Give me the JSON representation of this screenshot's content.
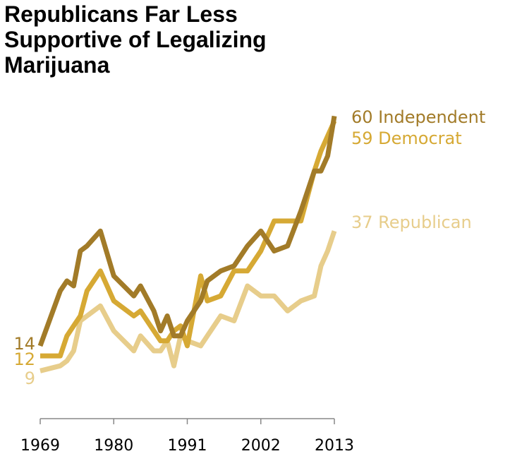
{
  "chart_data": {
    "type": "line",
    "title": "Republicans Far Less Supportive of Legalizing Marijuana",
    "x": [
      1969,
      1972,
      1973,
      1974,
      1975,
      1976,
      1978,
      1980,
      1983,
      1984,
      1986,
      1987,
      1988,
      1989,
      1990,
      1991,
      1993,
      1994,
      1996,
      1998,
      2000,
      2002,
      2004,
      2006,
      2008,
      2010,
      2011,
      2012,
      2013
    ],
    "series": [
      {
        "name": "Independent",
        "color": "#a27b28",
        "values": [
          14,
          25,
          27,
          26,
          33,
          34,
          37,
          28,
          24,
          26,
          21,
          17,
          20,
          16,
          16,
          19,
          23,
          27,
          29,
          30,
          34,
          37,
          33,
          34,
          41,
          49,
          49,
          52,
          60
        ]
      },
      {
        "name": "Democrat",
        "color": "#d6a934",
        "values": [
          12,
          12,
          16,
          18,
          20,
          25,
          29,
          23,
          20,
          21,
          17,
          15,
          15,
          17,
          18,
          14,
          28,
          23,
          24,
          29,
          29,
          33,
          39,
          39,
          39,
          49,
          53,
          56,
          59
        ]
      },
      {
        "name": "Republican",
        "color": "#e7cd8b",
        "values": [
          9,
          10,
          11,
          13,
          19,
          20,
          22,
          17,
          13,
          16,
          13,
          13,
          15,
          10,
          16,
          15,
          14,
          16,
          20,
          19,
          26,
          24,
          24,
          21,
          23,
          24,
          30,
          33,
          37
        ]
      }
    ],
    "xlim": [
      1969,
      2013
    ],
    "xticks": [
      1969,
      1980,
      1991,
      2002,
      2013
    ],
    "ylim": [
      0,
      65
    ]
  }
}
